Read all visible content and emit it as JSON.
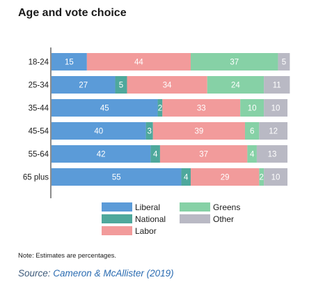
{
  "chart_data": {
    "type": "bar",
    "orientation": "horizontal",
    "stacked": true,
    "title": "Age and vote choice",
    "categories": [
      "18-24",
      "25-34",
      "35-44",
      "45-54",
      "55-64",
      "65 plus"
    ],
    "series": [
      {
        "name": "Liberal",
        "color": "#5b9bd8",
        "values": [
          15,
          27,
          45,
          40,
          42,
          55
        ]
      },
      {
        "name": "National",
        "color": "#4ea89c",
        "values": [
          0,
          5,
          2,
          3,
          4,
          4
        ]
      },
      {
        "name": "Labor",
        "color": "#f29b9b",
        "values": [
          44,
          34,
          33,
          39,
          37,
          29
        ]
      },
      {
        "name": "Greens",
        "color": "#86d1a6",
        "values": [
          37,
          24,
          10,
          6,
          4,
          2
        ]
      },
      {
        "name": "Other",
        "color": "#b9b9c4",
        "values": [
          5,
          11,
          10,
          12,
          13,
          10
        ]
      }
    ],
    "xlim": [
      0,
      100
    ],
    "legend_position": "bottom",
    "grid": false
  },
  "note": "Note: Estimates are percentages.",
  "source": {
    "label": "Source:",
    "text": "Cameron & McAllister (2019)"
  }
}
